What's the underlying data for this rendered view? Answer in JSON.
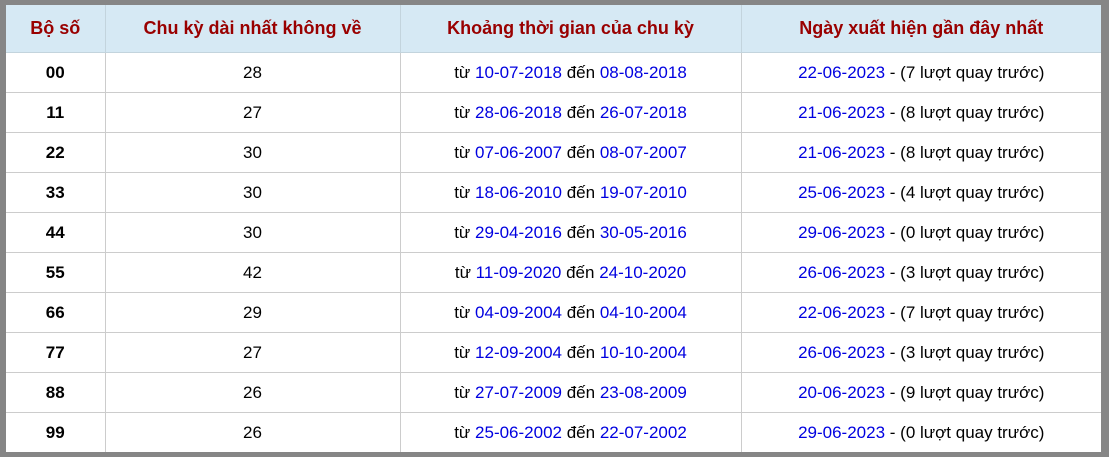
{
  "table": {
    "headers": [
      "Bộ số",
      "Chu kỳ dài nhất không về",
      "Khoảng thời gian của chu kỳ",
      "Ngày xuất hiện gần đây nhất"
    ],
    "labels": {
      "from": "từ ",
      "to": " đến ",
      "separator": " - "
    },
    "rows": [
      {
        "pair": "00",
        "cycle": "28",
        "start": "10-07-2018",
        "end": "08-08-2018",
        "recent": "22-06-2023",
        "note": "(7 lượt quay trước)"
      },
      {
        "pair": "11",
        "cycle": "27",
        "start": "28-06-2018",
        "end": "26-07-2018",
        "recent": "21-06-2023",
        "note": "(8 lượt quay trước)"
      },
      {
        "pair": "22",
        "cycle": "30",
        "start": "07-06-2007",
        "end": "08-07-2007",
        "recent": "21-06-2023",
        "note": "(8 lượt quay trước)"
      },
      {
        "pair": "33",
        "cycle": "30",
        "start": "18-06-2010",
        "end": "19-07-2010",
        "recent": "25-06-2023",
        "note": "(4 lượt quay trước)"
      },
      {
        "pair": "44",
        "cycle": "30",
        "start": "29-04-2016",
        "end": "30-05-2016",
        "recent": "29-06-2023",
        "note": "(0 lượt quay trước)"
      },
      {
        "pair": "55",
        "cycle": "42",
        "start": "11-09-2020",
        "end": "24-10-2020",
        "recent": "26-06-2023",
        "note": "(3 lượt quay trước)"
      },
      {
        "pair": "66",
        "cycle": "29",
        "start": "04-09-2004",
        "end": "04-10-2004",
        "recent": "22-06-2023",
        "note": "(7 lượt quay trước)"
      },
      {
        "pair": "77",
        "cycle": "27",
        "start": "12-09-2004",
        "end": "10-10-2004",
        "recent": "26-06-2023",
        "note": "(3 lượt quay trước)"
      },
      {
        "pair": "88",
        "cycle": "26",
        "start": "27-07-2009",
        "end": "23-08-2009",
        "recent": "20-06-2023",
        "note": "(9 lượt quay trước)"
      },
      {
        "pair": "99",
        "cycle": "26",
        "start": "25-06-2002",
        "end": "22-07-2002",
        "recent": "29-06-2023",
        "note": "(0 lượt quay trước)"
      }
    ],
    "colors": {
      "header_background": "#d6e9f4",
      "header_text": "#990000",
      "link_blue": "#0000e0",
      "frame_gray": "#868686",
      "grid_line": "#cccccc"
    }
  }
}
